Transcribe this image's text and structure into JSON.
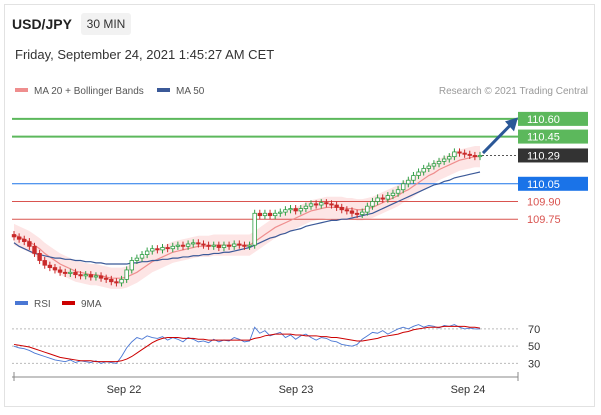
{
  "header": {
    "symbol": "USD/JPY",
    "timeframe": "30 MIN",
    "datetime": "Friday, September 24, 2021 1:45:27 AM CET"
  },
  "legend": {
    "ma20": "MA 20 + Bollinger Bands",
    "ma50": "MA 50",
    "credit": "Research © 2021 Trading Central"
  },
  "rsi_legend": {
    "rsi": "RSI",
    "ma9": "9MA"
  },
  "colors": {
    "up_candle": "#2f9e44",
    "down_candle": "#c92a2a",
    "ma20": "#ef8e8e",
    "bollinger_fill": "#fde2e2",
    "ma50": "#3b5998",
    "resistance": "#5cb85c",
    "support": "#d9534f",
    "pivot": "#1a73e8",
    "rsi": "#4a77d4",
    "ma9": "#cc0000"
  },
  "chart_data": {
    "type": "candlestick",
    "x_labels": [
      "Sep 22",
      "Sep 23",
      "Sep 24"
    ],
    "ylim": [
      109.15,
      110.76
    ],
    "levels": [
      {
        "label": "110.60",
        "value": 110.6,
        "kind": "resistance"
      },
      {
        "label": "110.45",
        "value": 110.45,
        "kind": "resistance"
      },
      {
        "label": "110.29",
        "value": 110.29,
        "kind": "last"
      },
      {
        "label": "110.05",
        "value": 110.05,
        "kind": "pivot"
      },
      {
        "label": "109.90",
        "value": 109.9,
        "kind": "support"
      },
      {
        "label": "109.75",
        "value": 109.75,
        "kind": "support"
      }
    ],
    "close_series": [
      109.6,
      109.58,
      109.56,
      109.52,
      109.46,
      109.4,
      109.36,
      109.34,
      109.32,
      109.3,
      109.29,
      109.3,
      109.28,
      109.27,
      109.28,
      109.26,
      109.27,
      109.25,
      109.24,
      109.22,
      109.21,
      109.24,
      109.32,
      109.4,
      109.42,
      109.45,
      109.48,
      109.5,
      109.49,
      109.51,
      109.5,
      109.52,
      109.53,
      109.52,
      109.54,
      109.55,
      109.54,
      109.53,
      109.52,
      109.53,
      109.51,
      109.53,
      109.52,
      109.54,
      109.53,
      109.52,
      109.53,
      109.8,
      109.78,
      109.8,
      109.78,
      109.8,
      109.81,
      109.83,
      109.84,
      109.82,
      109.84,
      109.86,
      109.88,
      109.87,
      109.89,
      109.88,
      109.87,
      109.85,
      109.83,
      109.82,
      109.8,
      109.79,
      109.81,
      109.86,
      109.9,
      109.93,
      109.92,
      109.95,
      109.97,
      110.0,
      110.05,
      110.08,
      110.12,
      110.15,
      110.18,
      110.2,
      110.22,
      110.24,
      110.26,
      110.28,
      110.32,
      110.31,
      110.3,
      110.29,
      110.28,
      110.29
    ],
    "ma20_series": [
      109.62,
      109.6,
      109.58,
      109.56,
      109.53,
      109.5,
      109.46,
      109.43,
      109.4,
      109.37,
      109.35,
      109.33,
      109.31,
      109.3,
      109.29,
      109.28,
      109.28,
      109.27,
      109.26,
      109.25,
      109.25,
      109.25,
      109.26,
      109.28,
      109.3,
      109.33,
      109.36,
      109.39,
      109.41,
      109.43,
      109.45,
      109.47,
      109.48,
      109.49,
      109.5,
      109.51,
      109.52,
      109.52,
      109.52,
      109.53,
      109.53,
      109.53,
      109.53,
      109.53,
      109.53,
      109.53,
      109.53,
      109.56,
      109.59,
      109.62,
      109.65,
      109.68,
      109.7,
      109.72,
      109.74,
      109.76,
      109.78,
      109.8,
      109.82,
      109.83,
      109.84,
      109.85,
      109.85,
      109.85,
      109.85,
      109.84,
      109.84,
      109.83,
      109.83,
      109.84,
      109.85,
      109.87,
      109.89,
      109.91,
      109.93,
      109.95,
      109.98,
      110.0,
      110.03,
      110.06,
      110.09,
      110.12,
      110.14,
      110.17,
      110.19,
      110.21,
      110.23,
      110.25,
      110.26,
      110.27,
      110.28,
      110.28
    ],
    "ma50_series": [
      109.55,
      109.52,
      109.5,
      109.48,
      109.46,
      109.45,
      109.44,
      109.43,
      109.42,
      109.42,
      109.41,
      109.41,
      109.4,
      109.4,
      109.39,
      109.39,
      109.38,
      109.38,
      109.37,
      109.37,
      109.37,
      109.37,
      109.37,
      109.38,
      109.38,
      109.39,
      109.39,
      109.4,
      109.4,
      109.41,
      109.41,
      109.42,
      109.42,
      109.43,
      109.43,
      109.44,
      109.44,
      109.45,
      109.45,
      109.46,
      109.46,
      109.47,
      109.47,
      109.48,
      109.49,
      109.5,
      109.51,
      109.53,
      109.55,
      109.57,
      109.59,
      109.6,
      109.62,
      109.63,
      109.65,
      109.66,
      109.67,
      109.69,
      109.7,
      109.71,
      109.72,
      109.73,
      109.74,
      109.74,
      109.75,
      109.75,
      109.76,
      109.77,
      109.78,
      109.79,
      109.8,
      109.82,
      109.84,
      109.86,
      109.88,
      109.9,
      109.92,
      109.94,
      109.96,
      109.98,
      110.0,
      110.02,
      110.04,
      110.05,
      110.07,
      110.08,
      110.1,
      110.11,
      110.12,
      110.13,
      110.14,
      110.15
    ],
    "rsi": {
      "ylim": [
        20,
        85
      ],
      "ticks": [
        70,
        50,
        30
      ],
      "rsi_series": [
        50,
        48,
        47,
        45,
        42,
        40,
        38,
        36,
        34,
        33,
        32,
        34,
        31,
        33,
        32,
        31,
        33,
        30,
        32,
        31,
        30,
        38,
        48,
        55,
        60,
        58,
        62,
        60,
        59,
        61,
        57,
        60,
        58,
        55,
        60,
        58,
        55,
        56,
        54,
        58,
        55,
        57,
        56,
        60,
        58,
        55,
        56,
        72,
        65,
        68,
        62,
        64,
        66,
        60,
        63,
        58,
        62,
        64,
        60,
        57,
        60,
        59,
        56,
        55,
        52,
        51,
        50,
        52,
        58,
        62,
        66,
        65,
        68,
        64,
        67,
        70,
        72,
        70,
        73,
        75,
        72,
        74,
        73,
        71,
        74,
        73,
        75,
        72,
        70,
        71,
        70,
        70
      ],
      "ma9_series": [
        52,
        51,
        50,
        49,
        47,
        45,
        43,
        41,
        39,
        37,
        36,
        35,
        34,
        33,
        33,
        33,
        32,
        32,
        32,
        32,
        32,
        33,
        35,
        38,
        42,
        46,
        50,
        54,
        57,
        59,
        60,
        60,
        60,
        59,
        59,
        59,
        58,
        58,
        57,
        57,
        57,
        57,
        57,
        57,
        57,
        57,
        57,
        59,
        60,
        62,
        63,
        64,
        64,
        64,
        64,
        63,
        63,
        62,
        62,
        62,
        61,
        61,
        60,
        60,
        59,
        58,
        57,
        56,
        56,
        57,
        58,
        59,
        61,
        62,
        63,
        64,
        66,
        67,
        69,
        70,
        71,
        72,
        72,
        72,
        73,
        73,
        73,
        73,
        73,
        72,
        72,
        71
      ]
    }
  }
}
